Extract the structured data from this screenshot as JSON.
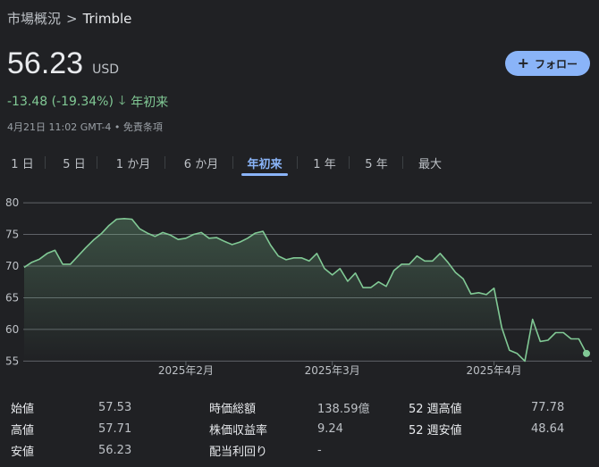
{
  "breadcrumb": {
    "root": "市場概況",
    "separator": ">",
    "current": "Trimble"
  },
  "price": {
    "value": "56.23",
    "currency": "USD"
  },
  "follow_button": {
    "label": "フォロー"
  },
  "change": {
    "text": "-13.48 (-19.34%)",
    "period": "年初来"
  },
  "timestamp": "4月21日 11:02 GMT-4 • 免責条項",
  "tabs": [
    {
      "label": "1 日",
      "active": false
    },
    {
      "label": "5 日",
      "active": false
    },
    {
      "label": "1 か月",
      "active": false
    },
    {
      "label": "6 か月",
      "active": false
    },
    {
      "label": "年初来",
      "active": true
    },
    {
      "label": "1 年",
      "active": false
    },
    {
      "label": "5 年",
      "active": false
    },
    {
      "label": "最大",
      "active": false
    }
  ],
  "colors": {
    "line": "#81c995",
    "accent": "#8ab4f8",
    "background": "#202124",
    "grid": "#5f6368"
  },
  "chart_data": {
    "type": "area",
    "ylim": [
      53.5,
      81
    ],
    "yticks": [
      80,
      75,
      70,
      65,
      60,
      55
    ],
    "x_ticks": [
      {
        "label": "2025年2月",
        "index": 21
      },
      {
        "label": "2025年3月",
        "index": 40
      },
      {
        "label": "2025年4月",
        "index": 61
      }
    ],
    "values": [
      69.8,
      70.6,
      71.1,
      72.0,
      72.5,
      70.3,
      70.3,
      71.6,
      72.9,
      74.1,
      75.1,
      76.4,
      77.4,
      77.5,
      77.4,
      75.9,
      75.2,
      74.7,
      75.3,
      74.9,
      74.2,
      74.4,
      75.0,
      75.3,
      74.4,
      74.5,
      73.9,
      73.4,
      73.8,
      74.4,
      75.2,
      75.5,
      73.3,
      71.6,
      71.0,
      71.3,
      71.3,
      70.8,
      72.0,
      69.6,
      68.6,
      69.6,
      67.6,
      68.9,
      66.6,
      66.6,
      67.5,
      66.8,
      69.3,
      70.3,
      70.3,
      71.6,
      70.8,
      70.8,
      72.0,
      70.6,
      69.0,
      68.0,
      65.6,
      65.8,
      65.5,
      66.5,
      60.3,
      56.7,
      56.2,
      55.0,
      61.6,
      58.1,
      58.3,
      59.5,
      59.5,
      58.5,
      58.5,
      56.2
    ]
  },
  "stats": [
    {
      "label": "始値",
      "value": "57.53"
    },
    {
      "label": "高値",
      "value": "57.71"
    },
    {
      "label": "安値",
      "value": "56.23"
    },
    {
      "label": "時価総額",
      "value": "138.59億"
    },
    {
      "label": "株価収益率",
      "value": "9.24"
    },
    {
      "label": "配当利回り",
      "value": "-"
    },
    {
      "label": "52 週高値",
      "value": "77.78"
    },
    {
      "label": "52 週安値",
      "value": "48.64"
    }
  ]
}
